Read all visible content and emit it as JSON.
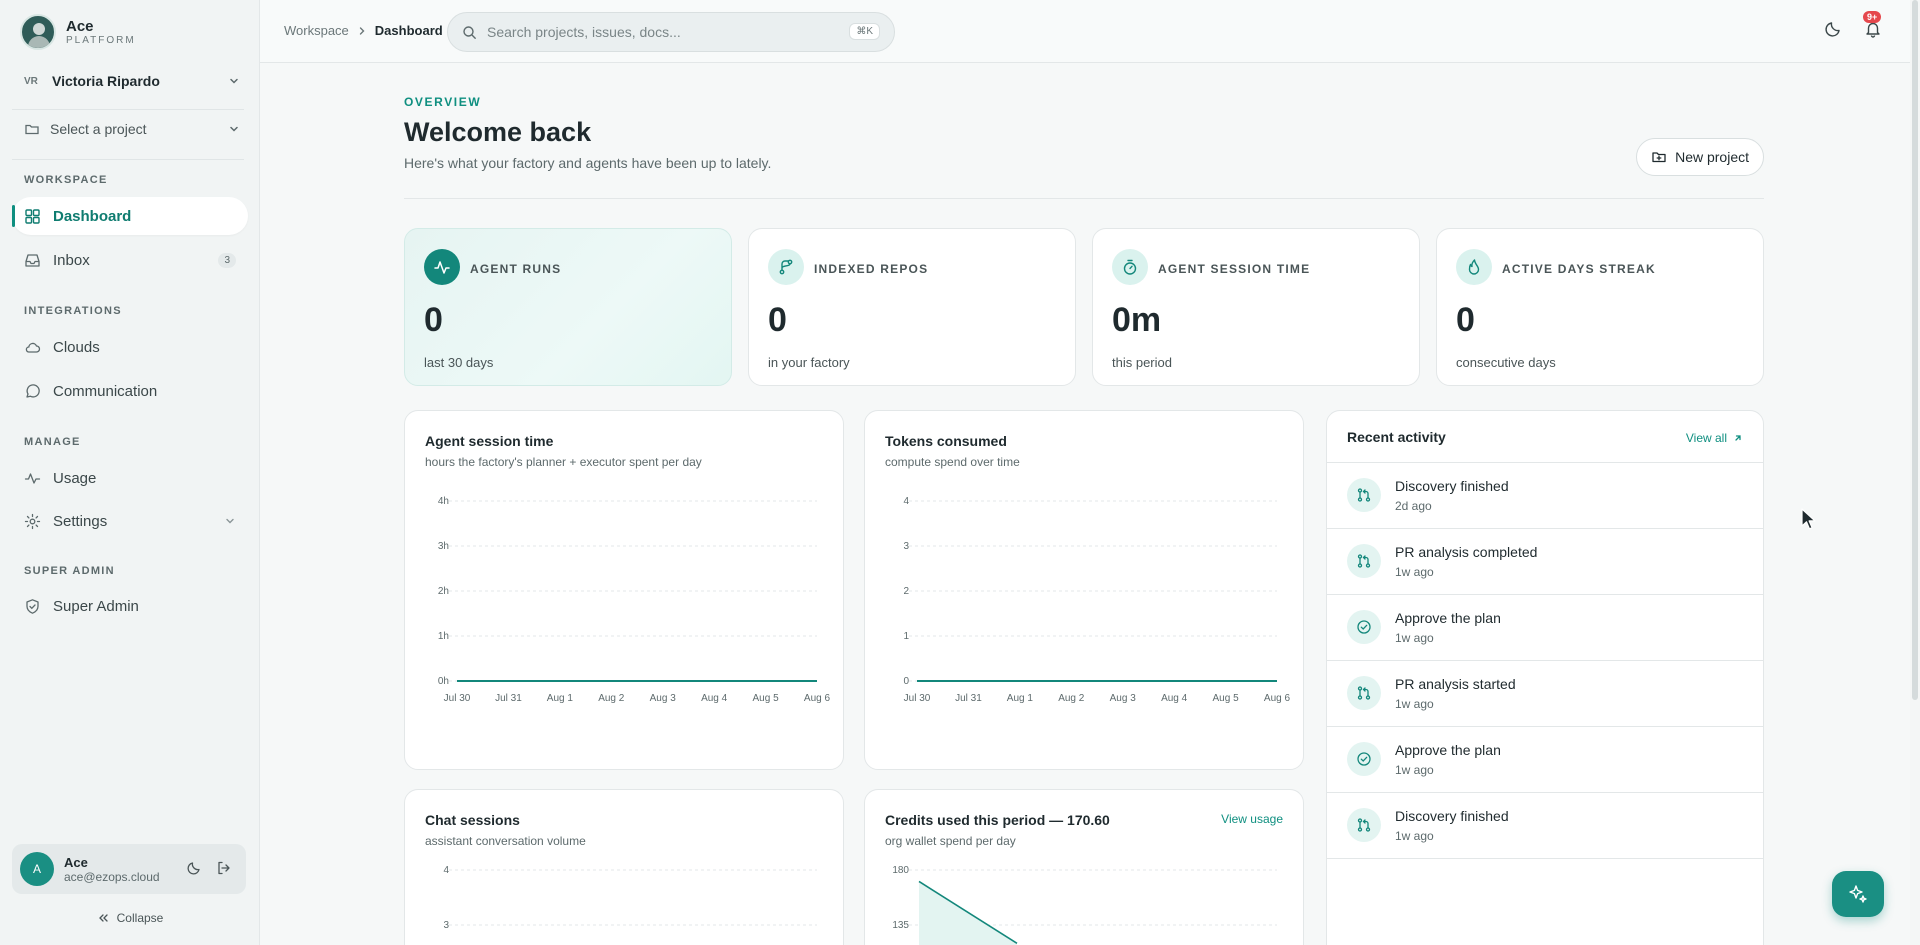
{
  "brand": {
    "name": "Ace",
    "sub": "PLATFORM"
  },
  "user_select": {
    "initials": "VR",
    "name": "Victoria Ripardo"
  },
  "project_select": {
    "label": "Select a project"
  },
  "sidebar": {
    "sections": {
      "workspace": "WORKSPACE",
      "integrations": "INTEGRATIONS",
      "manage": "MANAGE",
      "super_admin": "SUPER ADMIN"
    },
    "items": {
      "dashboard": "Dashboard",
      "inbox": "Inbox",
      "inbox_count": "3",
      "clouds": "Clouds",
      "communication": "Communication",
      "usage": "Usage",
      "settings": "Settings",
      "super_admin": "Super Admin"
    }
  },
  "account": {
    "avatar": "A",
    "name": "Ace",
    "email": "ace@ezops.cloud"
  },
  "collapse_label": "Collapse",
  "topbar": {
    "breadcrumb": [
      "Workspace",
      "Dashboard"
    ],
    "search_placeholder": "Search projects, issues, docs...",
    "search_shortcut": "⌘K",
    "notifications_badge": "9+"
  },
  "page": {
    "eyebrow": "OVERVIEW",
    "title": "Welcome back",
    "subtitle": "Here's what your factory and agents have been up to lately.",
    "new_project": "New project"
  },
  "stats": [
    {
      "label": "AGENT RUNS",
      "value": "0",
      "caption": "last 30 days",
      "icon": "activity-icon"
    },
    {
      "label": "INDEXED REPOS",
      "value": "0",
      "caption": "in your factory",
      "icon": "git-branch-icon"
    },
    {
      "label": "AGENT SESSION TIME",
      "value": "0m",
      "caption": "this period",
      "icon": "timer-icon"
    },
    {
      "label": "ACTIVE DAYS STREAK",
      "value": "0",
      "caption": "consecutive days",
      "icon": "flame-icon"
    }
  ],
  "cards": {
    "session": {
      "title": "Agent session time",
      "sub": "hours the factory's planner + executor spent per day"
    },
    "tokens": {
      "title": "Tokens consumed",
      "sub": "compute spend over time"
    },
    "chat": {
      "title": "Chat sessions",
      "sub": "assistant conversation volume"
    },
    "credits": {
      "title": "Credits used this period — 170.60",
      "sub": "org wallet spend per day",
      "link": "View usage"
    }
  },
  "activity": {
    "title": "Recent activity",
    "view_all": "View all",
    "items": [
      {
        "title": "Discovery finished",
        "time": "2d ago",
        "icon": "git-pull-request-icon"
      },
      {
        "title": "PR analysis completed",
        "time": "1w ago",
        "icon": "git-pull-request-icon"
      },
      {
        "title": "Approve the plan",
        "time": "1w ago",
        "icon": "check-circle-icon"
      },
      {
        "title": "PR analysis started",
        "time": "1w ago",
        "icon": "git-pull-request-icon"
      },
      {
        "title": "Approve the plan",
        "time": "1w ago",
        "icon": "check-circle-icon"
      },
      {
        "title": "Discovery finished",
        "time": "1w ago",
        "icon": "git-pull-request-icon"
      }
    ]
  },
  "chart_data": [
    {
      "type": "area",
      "title": "Agent session time",
      "categories": [
        "Jul 30",
        "Jul 31",
        "Aug 1",
        "Aug 2",
        "Aug 3",
        "Aug 4",
        "Aug 5",
        "Aug 6"
      ],
      "series": [
        {
          "values": [
            0,
            0,
            0,
            0,
            0,
            0,
            0,
            0
          ]
        }
      ],
      "yticks": [
        "0h",
        "1h",
        "2h",
        "3h",
        "4h"
      ],
      "ylim": [
        0,
        4
      ],
      "grid": true,
      "color": "#13877b"
    },
    {
      "type": "area",
      "title": "Tokens consumed",
      "categories": [
        "Jul 30",
        "Jul 31",
        "Aug 1",
        "Aug 2",
        "Aug 3",
        "Aug 4",
        "Aug 5",
        "Aug 6"
      ],
      "series": [
        {
          "values": [
            0,
            0,
            0,
            0,
            0,
            0,
            0,
            0
          ]
        }
      ],
      "yticks": [
        "0",
        "1",
        "2",
        "3",
        "4"
      ],
      "ylim": [
        0,
        4
      ],
      "grid": true,
      "color": "#13877b"
    },
    {
      "type": "area",
      "title": "Chat sessions",
      "yticks": [
        "3",
        "4"
      ],
      "ylim": [
        0,
        4
      ],
      "grid": true,
      "color": "#13877b"
    },
    {
      "type": "area",
      "title": "Credits used this period — 170.60",
      "yticks": [
        "135",
        "180"
      ],
      "ylim": [
        0,
        180
      ],
      "series": [
        {
          "values": [
            170.6,
            120
          ]
        }
      ],
      "grid": true,
      "color": "#13877b"
    }
  ]
}
